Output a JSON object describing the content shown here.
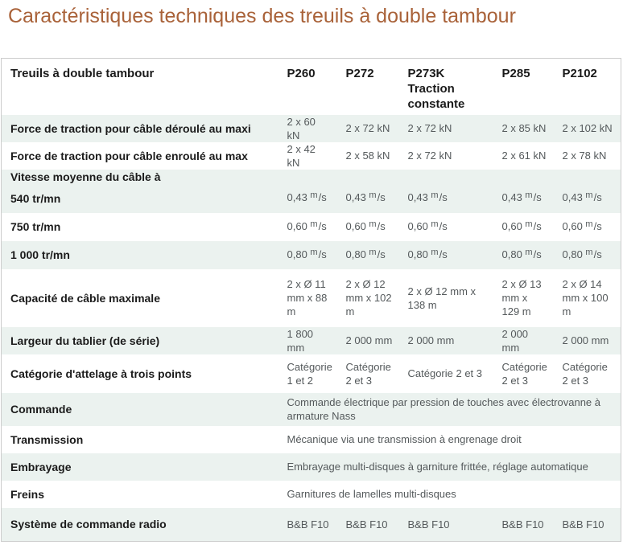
{
  "title": "Caractéristiques techniques des treuils à double tambour",
  "colors": {
    "title_text": "#a96239",
    "row_shaded": "#ebf2ef",
    "border": "#cccccc",
    "label_text": "#1b1b1b",
    "value_text": "#54595b"
  },
  "table": {
    "corner": "Treuils à double tambour",
    "columns": [
      {
        "name": "P260"
      },
      {
        "name": "P272"
      },
      {
        "name": "P273K",
        "subtitle": "Traction constante"
      },
      {
        "name": "P285"
      },
      {
        "name": "P2102"
      }
    ],
    "rows": [
      {
        "label": "Force de traction pour câble déroulé au maxi",
        "values": [
          "2 x 60 kN",
          "2 x 72 kN",
          "2 x 72 kN",
          "2 x 85 kN",
          "2 x 102 kN"
        ]
      },
      {
        "label": "Force de traction pour câble enroulé au max",
        "values": [
          "2 x 42 kN",
          "2 x 58 kN",
          "2 x 72 kN",
          "2 x 61 kN",
          "2 x 78 kN"
        ]
      },
      {
        "label": "Vitesse moyenne du câble à",
        "sublabel": "540 tr/mn",
        "values": [
          {
            "n": "0,43 ",
            "u": "m",
            "d": "/s"
          },
          {
            "n": "0,43 ",
            "u": "m",
            "d": "/s"
          },
          {
            "n": "0,43 ",
            "u": "m",
            "d": "/s"
          },
          {
            "n": "0,43 ",
            "u": "m",
            "d": "/s"
          },
          {
            "n": "0,43 ",
            "u": "m",
            "d": "/s"
          }
        ]
      },
      {
        "label": "750 tr/mn",
        "values": [
          {
            "n": "0,60 ",
            "u": "m",
            "d": "/s"
          },
          {
            "n": "0,60 ",
            "u": "m",
            "d": "/s"
          },
          {
            "n": "0,60 ",
            "u": "m",
            "d": "/s"
          },
          {
            "n": "0,60 ",
            "u": "m",
            "d": "/s"
          },
          {
            "n": "0,60 ",
            "u": "m",
            "d": "/s"
          }
        ]
      },
      {
        "label": "1 000 tr/mn",
        "values": [
          {
            "n": "0,80 ",
            "u": "m",
            "d": "/s"
          },
          {
            "n": "0,80 ",
            "u": "m",
            "d": "/s"
          },
          {
            "n": "0,80 ",
            "u": "m",
            "d": "/s"
          },
          {
            "n": "0,80 ",
            "u": "m",
            "d": "/s"
          },
          {
            "n": "0,80 ",
            "u": "m",
            "d": "/s"
          }
        ]
      },
      {
        "label": "Capacité de câble maximale",
        "values": [
          "2 x Ø 11 mm x 88 m",
          "2 x Ø 12 mm x 102 m",
          "2 x Ø 12 mm x 138 m",
          "2 x Ø 13 mm x 129 m",
          "2 x Ø 14 mm x 100 m"
        ]
      },
      {
        "label": "Largeur du tablier (de série)",
        "values": [
          "1 800 mm",
          "2 000 mm",
          "2 000 mm",
          "2 000 mm",
          "2 000 mm"
        ]
      },
      {
        "label": "Catégorie d'attelage à trois points",
        "values": [
          "Catégorie 1 et 2",
          "Catégorie 2 et 3",
          "Catégorie 2 et 3",
          "Catégorie 2 et 3",
          "Catégorie 2 et 3"
        ]
      },
      {
        "label": "Commande",
        "span_value": "Commande électrique par pression de touches avec électrovanne à armature Nass"
      },
      {
        "label": "Transmission",
        "span_value": "Mécanique via une transmission à engrenage droit"
      },
      {
        "label": "Embrayage",
        "span_value": "Embrayage multi-disques à garniture frittée, réglage automatique"
      },
      {
        "label": "Freins",
        "span_value": "Garnitures de lamelles multi-disques"
      },
      {
        "label": "Système de commande radio",
        "values": [
          "B&B F10",
          "B&B F10",
          "B&B F10",
          "B&B F10",
          "B&B F10"
        ]
      }
    ]
  }
}
